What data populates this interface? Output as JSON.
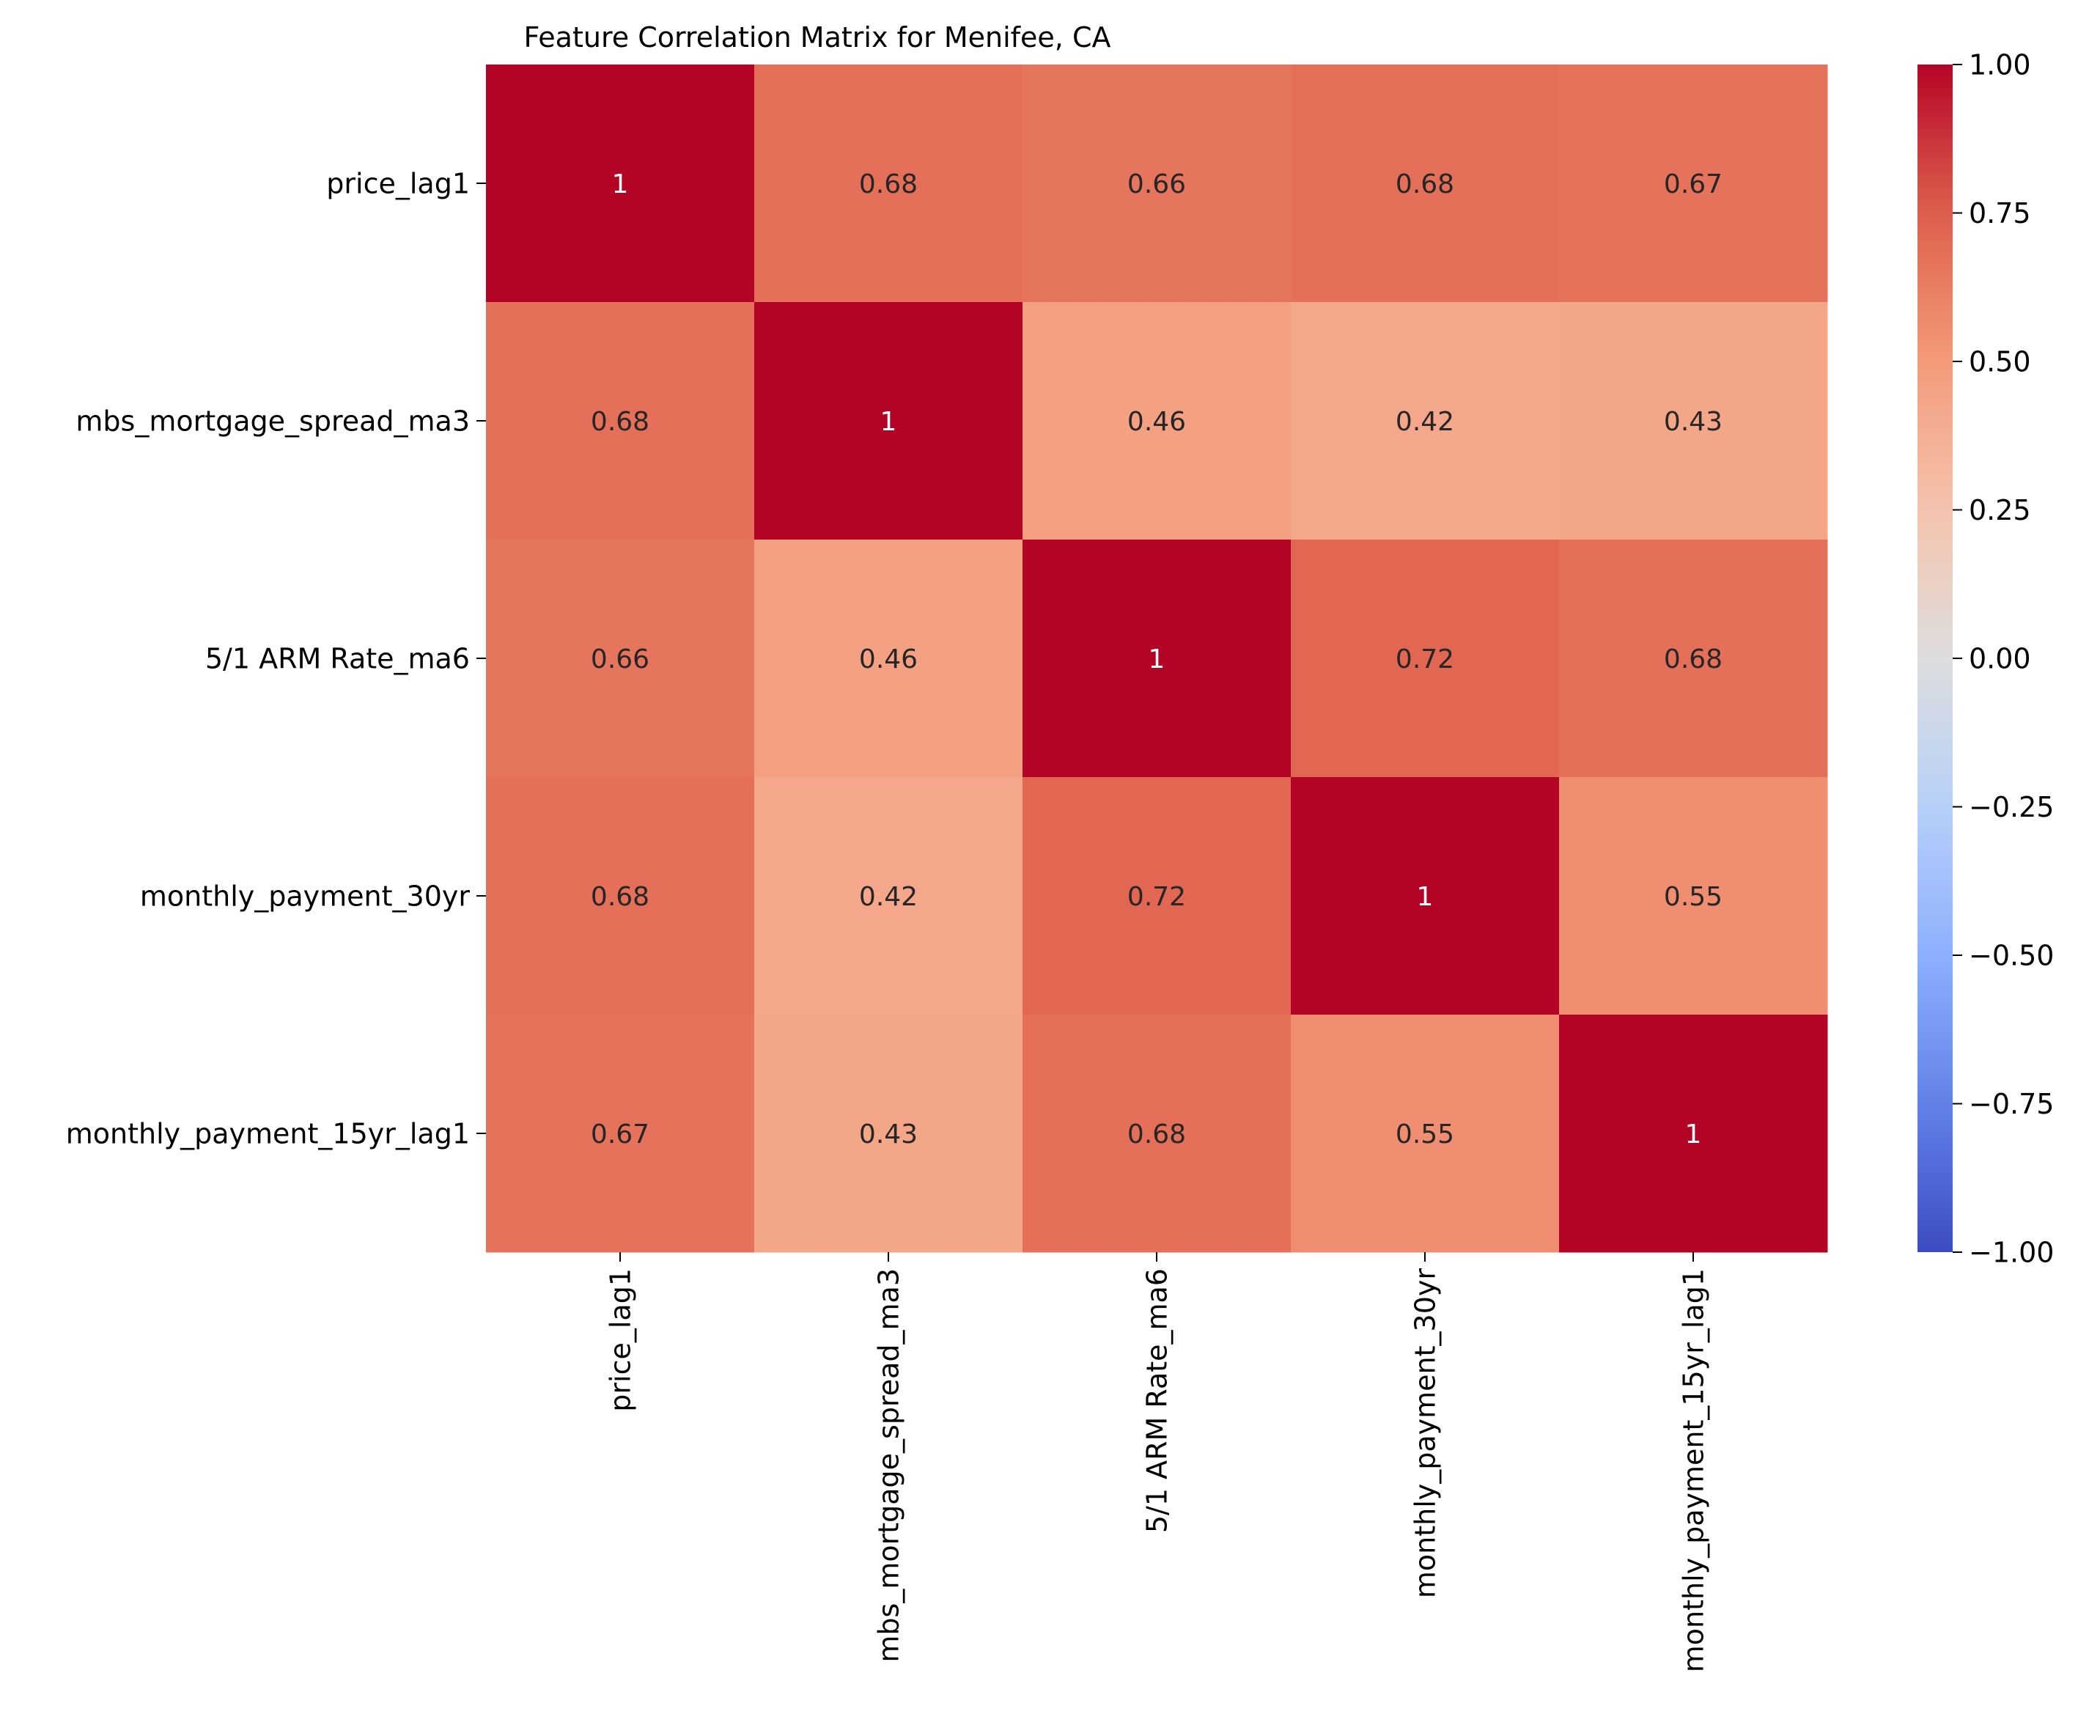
{
  "chart_data": {
    "type": "heatmap",
    "title": "Feature Correlation Matrix for Menifee, CA",
    "row_labels": [
      "price_lag1",
      "mbs_mortgage_spread_ma3",
      "5/1 ARM Rate_ma6",
      "monthly_payment_30yr",
      "monthly_payment_15yr_lag1"
    ],
    "col_labels": [
      "price_lag1",
      "mbs_mortgage_spread_ma3",
      "5/1 ARM Rate_ma6",
      "monthly_payment_30yr",
      "monthly_payment_15yr_lag1"
    ],
    "values": [
      [
        1.0,
        0.68,
        0.66,
        0.68,
        0.67
      ],
      [
        0.68,
        1.0,
        0.46,
        0.42,
        0.43
      ],
      [
        0.66,
        0.46,
        1.0,
        0.72,
        0.68
      ],
      [
        0.68,
        0.42,
        0.72,
        1.0,
        0.55
      ],
      [
        0.67,
        0.43,
        0.68,
        0.55,
        1.0
      ]
    ],
    "cell_labels": [
      [
        "1",
        "0.68",
        "0.66",
        "0.68",
        "0.67"
      ],
      [
        "0.68",
        "1",
        "0.46",
        "0.42",
        "0.43"
      ],
      [
        "0.66",
        "0.46",
        "1",
        "0.72",
        "0.68"
      ],
      [
        "0.68",
        "0.42",
        "0.72",
        "1",
        "0.55"
      ],
      [
        "0.67",
        "0.43",
        "0.68",
        "0.55",
        "1"
      ]
    ],
    "colormap": "coolwarm",
    "vmin": -1.0,
    "vmax": 1.0,
    "colorbar": {
      "ticks": [
        1.0,
        0.75,
        0.5,
        0.25,
        0.0,
        -0.25,
        -0.5,
        -0.75,
        -1.0
      ],
      "tick_labels": [
        "1.00",
        "0.75",
        "0.50",
        "0.25",
        "0.00",
        "−0.25",
        "−0.50",
        "−0.75",
        "−1.00"
      ]
    }
  }
}
